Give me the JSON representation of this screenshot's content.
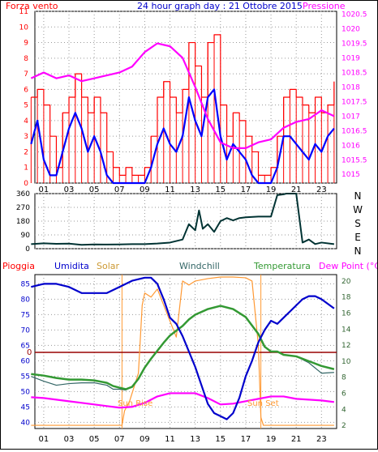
{
  "chart_data": [
    {
      "type": "line",
      "title": "24 hour graph day : 21 Ottobre 2015",
      "left_axis_label": "Forza vento",
      "right_axis_label": "Pressione",
      "ylim": [
        0,
        11
      ],
      "y_ticks": [
        "0",
        "1",
        "2",
        "3",
        "4",
        "5",
        "6",
        "7",
        "8",
        "9",
        "10",
        "11"
      ],
      "y2lim": [
        1014.7,
        1020.6
      ],
      "y2_ticks": [
        "1015",
        "1015.5",
        "1016",
        "1016.5",
        "1017",
        "1017.5",
        "1018",
        "1018.5",
        "1019",
        "1019.5",
        "1020",
        "1020.5"
      ],
      "x_ticks": [
        "01",
        "03",
        "05",
        "07",
        "09",
        "11",
        "13",
        "15",
        "17",
        "19",
        "21",
        "23"
      ],
      "colors": {
        "gust": "#ff0000",
        "wind": "#0000ff",
        "pressure": "#ff00ff"
      },
      "series": [
        {
          "key": "gust",
          "x": [
            0,
            0.5,
            1,
            1.5,
            2,
            2.5,
            3,
            3.5,
            4,
            4.5,
            5,
            5.5,
            6,
            6.5,
            7,
            7.5,
            8,
            8.5,
            9,
            9.5,
            10,
            10.5,
            11,
            11.5,
            12,
            12.5,
            13,
            13.5,
            14,
            14.5,
            15,
            15.5,
            16,
            16.5,
            17,
            17.5,
            18,
            18.5,
            19,
            19.5,
            20,
            20.5,
            21,
            21.5,
            22,
            22.5,
            23,
            23.5,
            24
          ],
          "values": [
            5.5,
            6,
            5,
            3,
            1,
            4.5,
            5.5,
            7,
            5.5,
            4.5,
            5.5,
            4.5,
            2,
            1,
            0.5,
            1,
            0.5,
            0.5,
            1,
            3,
            5.5,
            6.5,
            5.5,
            4.5,
            6,
            9,
            7.5,
            5.5,
            9,
            9.5,
            5,
            3,
            4.5,
            4,
            3,
            2,
            0.5,
            0.5,
            1,
            3,
            5.5,
            6,
            5.5,
            5,
            4.5,
            5.5,
            4.5,
            5,
            6.5
          ]
        },
        {
          "key": "wind",
          "x": [
            0,
            0.5,
            1,
            1.5,
            2,
            2.5,
            3,
            3.5,
            4,
            4.5,
            5,
            5.5,
            6,
            6.5,
            7,
            7.5,
            8,
            8.5,
            9,
            9.5,
            10,
            10.5,
            11,
            11.5,
            12,
            12.5,
            13,
            13.5,
            14,
            14.5,
            15,
            15.5,
            16,
            16.5,
            17,
            17.5,
            18,
            18.5,
            19,
            19.5,
            20,
            20.5,
            21,
            21.5,
            22,
            22.5,
            23,
            23.5,
            24
          ],
          "values": [
            2.5,
            4,
            1.5,
            0.5,
            0.5,
            2,
            3.5,
            4.5,
            3.5,
            2,
            3,
            2,
            0.5,
            0,
            0,
            0,
            0,
            0,
            0,
            1,
            2.5,
            3.5,
            2.5,
            2,
            3,
            5.5,
            4,
            3,
            5.5,
            6,
            3,
            1.5,
            2.5,
            2,
            1.5,
            0.5,
            0,
            0,
            0,
            1,
            3,
            3,
            2.5,
            2,
            1.5,
            2.5,
            2,
            3,
            3.5
          ]
        },
        {
          "key": "pressure",
          "x": [
            0,
            1,
            2,
            3,
            4,
            5,
            6,
            7,
            8,
            9,
            10,
            11,
            12,
            13,
            14,
            15,
            16,
            17,
            18,
            19,
            20,
            21,
            22,
            23,
            24
          ],
          "values": [
            1018.3,
            1018.5,
            1018.3,
            1018.4,
            1018.2,
            1018.3,
            1018.4,
            1018.5,
            1018.7,
            1019.2,
            1019.5,
            1019.4,
            1019,
            1018,
            1016.9,
            1016.1,
            1015.9,
            1015.9,
            1016.1,
            1016.2,
            1016.6,
            1016.8,
            1016.9,
            1017.2,
            1017
          ]
        }
      ]
    },
    {
      "type": "line",
      "ylim": [
        0,
        360
      ],
      "y_ticks": [
        "0",
        "90",
        "180",
        "270",
        "360"
      ],
      "compass": [
        "N",
        "W",
        "S",
        "E",
        "N"
      ],
      "color": "#003333",
      "series": [
        {
          "key": "direction",
          "x": [
            0,
            1,
            2,
            3,
            4,
            5,
            6,
            7,
            8,
            9,
            10,
            11,
            12,
            12.5,
            13,
            13.3,
            13.6,
            14,
            14.5,
            15,
            15.5,
            16,
            16.5,
            17,
            18,
            19,
            19.5,
            20,
            20.2,
            21,
            21.5,
            22,
            22.5,
            23,
            24
          ],
          "values": [
            30,
            35,
            32,
            33,
            25,
            28,
            27,
            28,
            30,
            30,
            34,
            40,
            60,
            160,
            120,
            250,
            130,
            160,
            110,
            180,
            200,
            185,
            200,
            205,
            210,
            210,
            350,
            355,
            360,
            360,
            40,
            60,
            30,
            40,
            30
          ]
        }
      ]
    },
    {
      "type": "line",
      "left_axis_label": "Pioggia",
      "legend": [
        "Umidita",
        "Solar",
        "Windchill",
        "Temperatura",
        "Dew Point (°C)"
      ],
      "ylim": [
        38,
        88
      ],
      "y_ticks": [
        "40",
        "45",
        "50",
        "55",
        "60",
        "65",
        "70",
        "75",
        "80",
        "85"
      ],
      "y2lim": [
        1.6,
        20.8
      ],
      "y2_ticks": [
        "2",
        "4",
        "6",
        "8",
        "10",
        "12",
        "14",
        "16",
        "18",
        "20"
      ],
      "rain_level": {
        "label": "0",
        "color": "#990000"
      },
      "annotations": [
        "Sun Rise",
        "Sun Set"
      ],
      "x_ticks": [
        "01",
        "03",
        "05",
        "07",
        "09",
        "11",
        "13",
        "15",
        "17",
        "19",
        "21",
        "23"
      ],
      "colors": {
        "humidity": "#0000cc",
        "solar": "#ff9933",
        "windchill": "#336666",
        "temperature": "#339933",
        "dewpoint": "#ff00ff"
      },
      "series": [
        {
          "key": "humidity",
          "x": [
            0,
            1,
            2,
            3,
            4,
            5,
            6,
            7,
            8,
            9,
            9.5,
            10,
            10.5,
            11,
            11.5,
            12,
            12.5,
            13,
            13.5,
            14,
            14.5,
            15,
            15.5,
            16,
            16.5,
            17,
            17.5,
            18,
            18.5,
            19,
            19.5,
            20,
            20.5,
            21,
            21.5,
            22,
            22.5,
            23,
            24
          ],
          "values": [
            84,
            85,
            85,
            84,
            82,
            82,
            82,
            84,
            86,
            87,
            87,
            85,
            80,
            74,
            72,
            68,
            63,
            58,
            52,
            46,
            43,
            42,
            41,
            43,
            48,
            55,
            60,
            66,
            70,
            73,
            72,
            74,
            76,
            78,
            80,
            81,
            81,
            80,
            77
          ]
        },
        {
          "key": "solar",
          "x": [
            0,
            7.2,
            7.4,
            7.8,
            8.5,
            8.8,
            9,
            9.5,
            10,
            11,
            11.5,
            12,
            12.5,
            13,
            14,
            15,
            16,
            17,
            17.5,
            18,
            18.2,
            18.4,
            24
          ],
          "values": [
            2,
            2,
            3.8,
            5,
            8.5,
            17,
            18.5,
            18,
            19,
            15,
            13,
            20,
            19.5,
            20,
            20.3,
            20.5,
            20.5,
            20.4,
            20,
            12,
            3,
            2,
            2
          ]
        },
        {
          "key": "windchill",
          "x": [
            0,
            1,
            2,
            3,
            4,
            5,
            6,
            6.5,
            7,
            7.5,
            8,
            8.5,
            9,
            9.5,
            10,
            10.5,
            11,
            11.5,
            12,
            12.5,
            13,
            14,
            15,
            16,
            17,
            18,
            18.5,
            19,
            19.5,
            20,
            21,
            22,
            23,
            24
          ],
          "values": [
            8.1,
            7.5,
            7,
            7.2,
            7.3,
            7.3,
            7,
            6.5,
            6.5,
            6.4,
            6.8,
            7.8,
            9.2,
            10.3,
            11.3,
            12.3,
            13.2,
            13.8,
            14.4,
            15.2,
            15.8,
            16.5,
            16.9,
            16.5,
            15.5,
            13.4,
            11.8,
            11.2,
            11.2,
            10.8,
            10.6,
            9.8,
            8.5,
            8.6
          ]
        },
        {
          "key": "temperature",
          "x": [
            0,
            1,
            2,
            3,
            4,
            5,
            6,
            6.5,
            7,
            7.5,
            8,
            8.5,
            9,
            9.5,
            10,
            10.5,
            11,
            11.5,
            12,
            12.5,
            13,
            14,
            15,
            16,
            17,
            18,
            18.5,
            19,
            19.5,
            20,
            21,
            22,
            23,
            24
          ],
          "values": [
            8.4,
            8.2,
            7.9,
            7.7,
            7.7,
            7.6,
            7.3,
            6.9,
            6.7,
            6.5,
            6.8,
            7.8,
            9.2,
            10.3,
            11.3,
            12.3,
            13.2,
            13.8,
            14.4,
            15.2,
            15.8,
            16.5,
            16.9,
            16.5,
            15.5,
            13.4,
            11.8,
            11.2,
            11.2,
            10.8,
            10.6,
            10,
            9.4,
            9
          ]
        },
        {
          "key": "dewpoint",
          "x": [
            0,
            1,
            2,
            3,
            4,
            5,
            6,
            7,
            8,
            9,
            10,
            11,
            12,
            13,
            14,
            15,
            16,
            17,
            18,
            19,
            20,
            21,
            22,
            23,
            24
          ],
          "values": [
            5.5,
            5.4,
            5.2,
            5,
            4.8,
            4.6,
            4.4,
            4.2,
            4.3,
            4.8,
            5.6,
            6,
            6,
            6,
            5.4,
            4.6,
            4.7,
            5,
            5.3,
            5.6,
            5.6,
            5.3,
            5.2,
            5.1,
            4.9
          ]
        }
      ]
    }
  ]
}
